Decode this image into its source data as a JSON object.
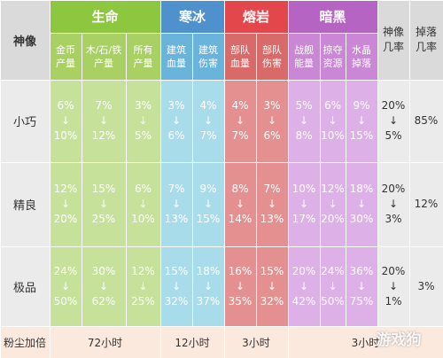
{
  "colors": {
    "green_header": "#8DC63F",
    "green_sub": "#A9D062",
    "green_body": "#C5E19A",
    "blue_header": "#4F91CD",
    "blue_sub": "#6AB3DA",
    "blue_body": "#A9DCEB",
    "red_header": "#E4474B",
    "red_sub": "#D86A6A",
    "red_body": "#E59090",
    "purple_header": "#B564C4",
    "purple_sub": "#C987D6",
    "purple_body": "#DDB1E8",
    "gray_header": "#DADADA",
    "gray_body": "#EBEBEB",
    "footer_bg": "#FCE9DE"
  },
  "header": {
    "label_col": "神像",
    "groups": [
      "生命",
      "寒冰",
      "熔岩",
      "暗黑"
    ],
    "god_rate": "神像\n几率",
    "drop_rate": "掉落\n几率"
  },
  "subheaders": [
    "金币\n产量",
    "木/石/铁\n产量",
    "所有\n产量",
    "建筑\n血量",
    "建筑\n伤害",
    "部队\n血量",
    "部队\n伤害",
    "战舰\n能量",
    "掠夺\n资源",
    "水晶\n掉落"
  ],
  "rows": [
    {
      "label": "小巧",
      "values": [
        "6%\n↓\n10%",
        "7%\n↓\n12%",
        "3%\n↓\n5%",
        "3%\n↓\n6%",
        "4%\n↓\n7%",
        "4%\n↓\n7%",
        "3%\n↓\n6%",
        "5%\n↓\n8%",
        "6%\n↓\n10%",
        "9%\n↓\n15%"
      ],
      "god_rate": "20%\n↓\n5%",
      "drop_rate": "85%"
    },
    {
      "label": "精良",
      "values": [
        "12%\n↓\n20%",
        "15%\n↓\n25%",
        "6%\n↓\n10%",
        "7%\n↓\n13%",
        "9%\n↓\n15%",
        "8%\n↓\n14%",
        "7%\n↓\n13%",
        "10%\n↓\n17%",
        "12%\n↓\n20%",
        "18%\n↓\n30%"
      ],
      "god_rate": "20%\n↓\n3%",
      "drop_rate": "12%"
    },
    {
      "label": "极品",
      "values": [
        "24%\n↓\n50%",
        "30%\n↓\n62%",
        "12%\n↓\n25%",
        "15%\n↓\n32%",
        "18%\n↓\n37%",
        "16%\n↓\n35%",
        "15%\n↓\n32%",
        "20%\n↓\n42%",
        "24%\n↓\n50%",
        "36%\n↓\n75%"
      ],
      "god_rate": "20%\n↓\n1%",
      "drop_rate": "3%"
    }
  ],
  "footer": {
    "label": "粉尘加倍",
    "durations": [
      "72小时",
      "12小时",
      "3小时",
      "3小时"
    ]
  },
  "watermark": "游戏狗"
}
